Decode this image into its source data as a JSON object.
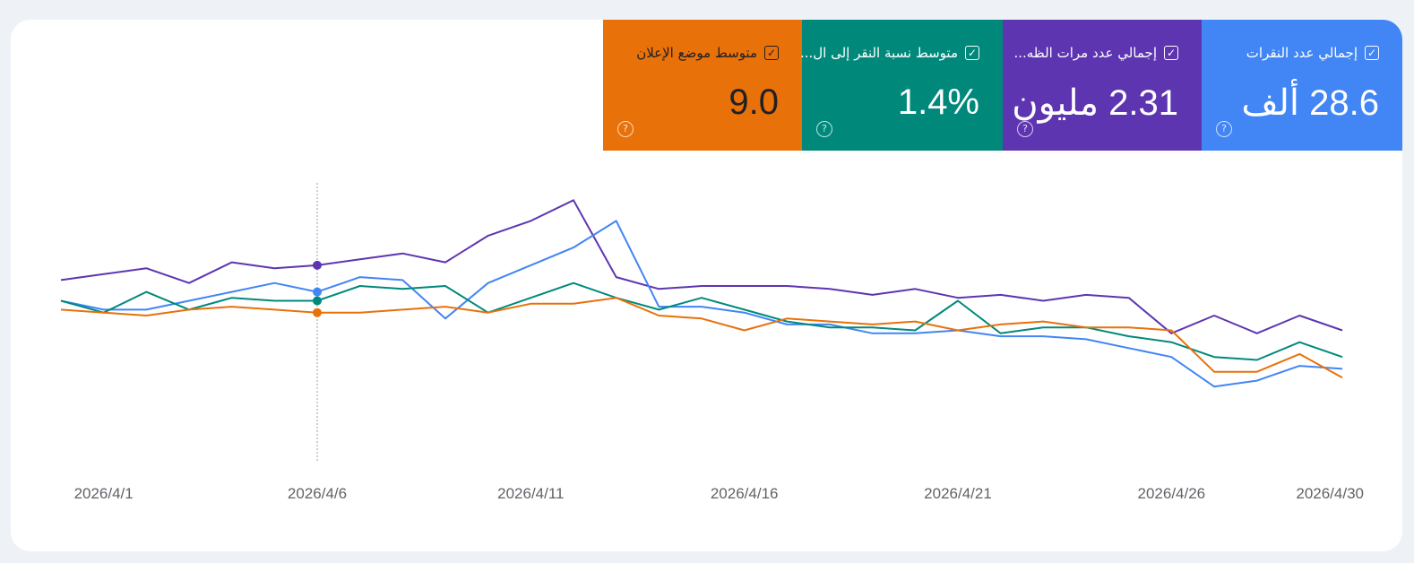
{
  "metrics": [
    {
      "label": "متوسط موضع الإعلان",
      "value": "9.0",
      "color": "#e8710a",
      "text_color": "#202124",
      "checked": true,
      "help_icon": "help-circle-icon"
    },
    {
      "label": "متوسط نسبة النقر إلى ال...",
      "value": "1.4%",
      "color": "#00897b",
      "text_color": "#ffffff",
      "checked": true,
      "help_icon": "help-circle-icon"
    },
    {
      "label": "إجمالي عدد مرات الظه...",
      "value": "2.31 مليون",
      "color": "#5e35b1",
      "text_color": "#ffffff",
      "checked": true,
      "help_icon": "help-circle-icon"
    },
    {
      "label": "إجمالي عدد النقرات",
      "value": "28.6 ألف",
      "color": "#4285f4",
      "text_color": "#ffffff",
      "checked": true,
      "help_icon": "help-circle-icon"
    }
  ],
  "chart_data": {
    "type": "line",
    "x": [
      "2026/3/31",
      "2026/4/1",
      "2026/4/2",
      "2026/4/3",
      "2026/4/4",
      "2026/4/5",
      "2026/4/6",
      "2026/4/7",
      "2026/4/8",
      "2026/4/9",
      "2026/4/10",
      "2026/4/11",
      "2026/4/12",
      "2026/4/13",
      "2026/4/14",
      "2026/4/15",
      "2026/4/16",
      "2026/4/17",
      "2026/4/18",
      "2026/4/19",
      "2026/4/20",
      "2026/4/21",
      "2026/4/22",
      "2026/4/23",
      "2026/4/24",
      "2026/4/25",
      "2026/4/26",
      "2026/4/27",
      "2026/4/28",
      "2026/4/29",
      "2026/4/30"
    ],
    "x_tick_labels": [
      "2026/4/1",
      "2026/4/6",
      "2026/4/11",
      "2026/4/16",
      "2026/4/21",
      "2026/4/26",
      "2026/4/30"
    ],
    "ylim": [
      0,
      100
    ],
    "grid": false,
    "legend": "none",
    "hover_date": "2026/4/6",
    "series": [
      {
        "color": "#5e35b1",
        "values": [
          62,
          64,
          66,
          61,
          68,
          66,
          67,
          69,
          71,
          68,
          77,
          82,
          89,
          63,
          59,
          60,
          60,
          60,
          59,
          57,
          59,
          56,
          57,
          55,
          57,
          56,
          44,
          50,
          44,
          50,
          45
        ]
      },
      {
        "color": "#4285f4",
        "values": [
          55,
          52,
          52,
          55,
          58,
          61,
          58,
          63,
          62,
          49,
          61,
          67,
          73,
          82,
          53,
          53,
          51,
          47,
          47,
          44,
          44,
          45,
          43,
          43,
          42,
          39,
          36,
          26,
          28,
          33,
          32
        ]
      },
      {
        "color": "#00897b",
        "values": [
          55,
          51,
          58,
          52,
          56,
          55,
          55,
          60,
          59,
          60,
          51,
          56,
          61,
          56,
          52,
          56,
          52,
          48,
          46,
          46,
          45,
          55,
          44,
          46,
          46,
          43,
          41,
          36,
          35,
          41,
          36
        ]
      },
      {
        "color": "#e8710a",
        "values": [
          52,
          51,
          50,
          52,
          53,
          52,
          51,
          51,
          52,
          53,
          51,
          54,
          54,
          56,
          50,
          49,
          45,
          49,
          48,
          47,
          48,
          45,
          47,
          48,
          46,
          46,
          45,
          31,
          31,
          37,
          29
        ]
      }
    ]
  }
}
